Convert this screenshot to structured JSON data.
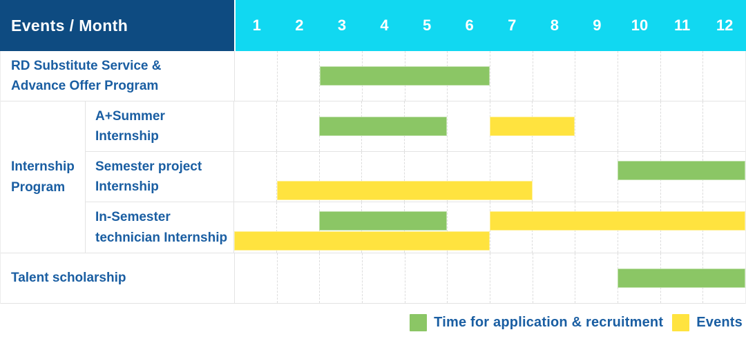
{
  "header": {
    "title": "Events / Month",
    "months": [
      "1",
      "2",
      "3",
      "4",
      "5",
      "6",
      "7",
      "8",
      "9",
      "10",
      "11",
      "12"
    ]
  },
  "colors": {
    "header_bg": "#0E4B81",
    "months_bg": "#11D8F1",
    "label_text": "#1A5EA2",
    "green": "#8BC665",
    "yellow": "#FFE33F",
    "grid_line": "#E3E3E3",
    "grid_dash": "#DCDCDC"
  },
  "legend": [
    {
      "key": "recruitment",
      "label": "Time for application & recruitment",
      "color": "#8BC665"
    },
    {
      "key": "events",
      "label": "Events",
      "color": "#FFE33F"
    }
  ],
  "chart_data": {
    "type": "bar",
    "subtype": "gantt-schedule",
    "title": "Events / Month",
    "xlabel": "Month",
    "x_categories": [
      "1",
      "2",
      "3",
      "4",
      "5",
      "6",
      "7",
      "8",
      "9",
      "10",
      "11",
      "12"
    ],
    "x_range": [
      1,
      12
    ],
    "grid": "dashed-vertical",
    "legend_position": "bottom-right",
    "series_legend": [
      {
        "key": "recruitment",
        "label": "Time for application & recruitment",
        "color": "#8BC665"
      },
      {
        "key": "events",
        "label": "Events",
        "color": "#FFE33F"
      }
    ],
    "rows": [
      {
        "group": "",
        "label": "RD Substitute Service &\nAdvance Offer Program",
        "bars": [
          {
            "series": "recruitment",
            "start_month": 3,
            "end_month": 6,
            "lane": "center"
          }
        ]
      },
      {
        "group": "Internship Program",
        "label": "A+Summer\nInternship",
        "bars": [
          {
            "series": "recruitment",
            "start_month": 3,
            "end_month": 5,
            "lane": "center"
          },
          {
            "series": "events",
            "start_month": 7,
            "end_month": 8,
            "lane": "center"
          }
        ]
      },
      {
        "group": "Internship Program",
        "label": "Semester project\nInternship",
        "bars": [
          {
            "series": "recruitment",
            "start_month": 10,
            "end_month": 12,
            "lane": "top"
          },
          {
            "series": "events",
            "start_month": 2,
            "end_month": 7,
            "lane": "bottom"
          }
        ]
      },
      {
        "group": "Internship Program",
        "label": "In-Semester\ntechnician Internship",
        "bars": [
          {
            "series": "recruitment",
            "start_month": 3,
            "end_month": 5,
            "lane": "top"
          },
          {
            "series": "events",
            "start_month": 7,
            "end_month": 12,
            "lane": "top"
          },
          {
            "series": "events",
            "start_month": 1,
            "end_month": 6,
            "lane": "bottom"
          }
        ]
      },
      {
        "group": "",
        "label": "Talent scholarship",
        "bars": [
          {
            "series": "recruitment",
            "start_month": 10,
            "end_month": 12,
            "lane": "center"
          }
        ]
      }
    ]
  }
}
